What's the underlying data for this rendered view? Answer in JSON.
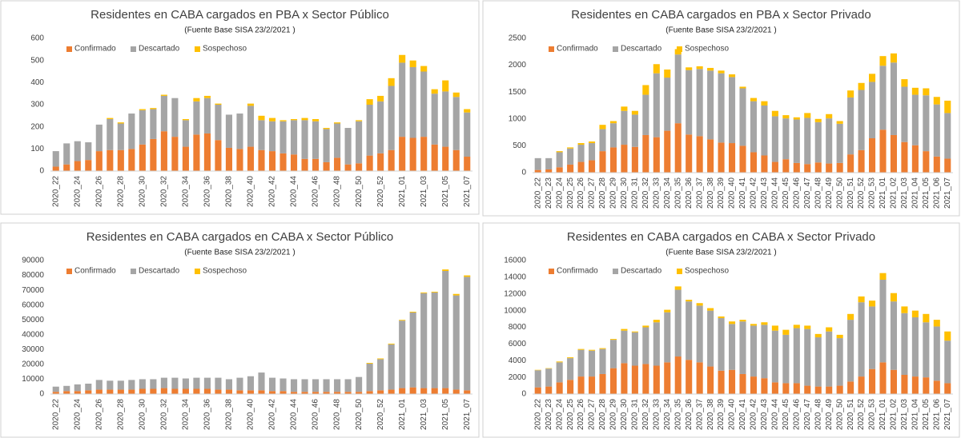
{
  "chart_data": [
    {
      "type": "stacked-bar",
      "title": "Residentes en CABA cargados en PBA x Sector Público",
      "subtitle": "(Fuente  Base SISA  23/2/2021 )",
      "categories": [
        "2020_22",
        null,
        "2020_24",
        null,
        "2020_26",
        null,
        "2020_28",
        null,
        "2020_30",
        null,
        "2020_32",
        null,
        "2020_34",
        null,
        "2020_36",
        null,
        "2020_38",
        null,
        "2020_40",
        null,
        "2020_42",
        null,
        "2020_44",
        null,
        "2020_46",
        null,
        "2020_48",
        null,
        "2020_50",
        null,
        "2020_52",
        null,
        "2021_01",
        null,
        "2021_03",
        null,
        "2021_05",
        null,
        "2021_07"
      ],
      "series": [
        {
          "name": "Confirmado",
          "color": "#ed7d31",
          "values": [
            20,
            30,
            45,
            50,
            90,
            95,
            95,
            100,
            120,
            145,
            180,
            155,
            110,
            165,
            170,
            140,
            105,
            100,
            110,
            95,
            90,
            80,
            75,
            55,
            55,
            40,
            60,
            30,
            35,
            70,
            80,
            95,
            155,
            150,
            155,
            120,
            110,
            95,
            65
          ]
        },
        {
          "name": "Descartado",
          "color": "#a5a5a5",
          "values": [
            70,
            95,
            90,
            80,
            120,
            140,
            120,
            160,
            155,
            135,
            160,
            175,
            120,
            150,
            160,
            160,
            150,
            160,
            185,
            135,
            135,
            145,
            155,
            175,
            170,
            150,
            155,
            165,
            190,
            230,
            235,
            290,
            335,
            320,
            295,
            230,
            250,
            240,
            200
          ]
        },
        {
          "name": "Sospechoso",
          "color": "#ffc000",
          "values": [
            0,
            0,
            0,
            0,
            0,
            5,
            5,
            0,
            5,
            5,
            5,
            0,
            5,
            15,
            10,
            5,
            0,
            0,
            10,
            20,
            15,
            5,
            5,
            10,
            10,
            5,
            5,
            0,
            5,
            25,
            25,
            35,
            35,
            30,
            25,
            20,
            50,
            20,
            15
          ]
        }
      ],
      "ylim": [
        0,
        600
      ],
      "yticks": [
        0,
        100,
        200,
        300,
        400,
        500,
        600
      ],
      "grid": false,
      "legend": "top-left"
    },
    {
      "type": "stacked-bar",
      "title": "Residentes en CABA cargados en PBA x Sector Privado",
      "subtitle": "(Fuente  Base SISA  23/2/2021 )",
      "categories": [
        "2020_22",
        "2020_23",
        "2020_24",
        "2020_25",
        "2020_26",
        "2020_27",
        "2020_28",
        "2020_29",
        "2020_30",
        "2020_31",
        "2020_32",
        "2020_33",
        "2020_34",
        "2020_35",
        "2020_36",
        "2020_37",
        "2020_38",
        "2020_39",
        "2020_40",
        "2020_41",
        "2020_42",
        "2020_43",
        "2020_44",
        "2020_45",
        "2020_46",
        "2020_47",
        "2020_48",
        "2020_49",
        "2020_50",
        "2020_51",
        "2020_52",
        "2020_53",
        "2021_01",
        "2021_02",
        "2021_03",
        "2021_04",
        "2021_05",
        "2021_06",
        "2021_07"
      ],
      "series": [
        {
          "name": "Confirmado",
          "color": "#ed7d31",
          "values": [
            50,
            60,
            100,
            150,
            200,
            230,
            400,
            470,
            520,
            480,
            700,
            660,
            780,
            920,
            710,
            680,
            620,
            560,
            550,
            500,
            380,
            320,
            200,
            250,
            180,
            160,
            190,
            170,
            180,
            340,
            420,
            640,
            800,
            700,
            570,
            510,
            400,
            300,
            260
          ]
        },
        {
          "name": "Descartado",
          "color": "#a5a5a5",
          "values": [
            220,
            210,
            280,
            300,
            320,
            320,
            410,
            450,
            630,
            600,
            750,
            1190,
            990,
            1280,
            1200,
            1250,
            1280,
            1290,
            1230,
            1070,
            950,
            930,
            850,
            760,
            810,
            860,
            750,
            840,
            730,
            1060,
            1120,
            1050,
            1190,
            1350,
            1030,
            940,
            1040,
            970,
            850
          ]
        },
        {
          "name": "Sospechoso",
          "color": "#ffc000",
          "values": [
            0,
            0,
            20,
            20,
            30,
            30,
            80,
            40,
            80,
            70,
            180,
            170,
            150,
            100,
            50,
            50,
            50,
            50,
            50,
            30,
            60,
            80,
            100,
            60,
            40,
            90,
            60,
            80,
            50,
            130,
            130,
            150,
            180,
            170,
            140,
            130,
            130,
            140,
            230
          ]
        }
      ],
      "ylim": [
        0,
        2500
      ],
      "yticks": [
        0,
        500,
        1000,
        1500,
        2000,
        2500
      ],
      "grid": false,
      "legend": "top-left"
    },
    {
      "type": "stacked-bar",
      "title": "Residentes en CABA cargados en CABA x Sector Público",
      "subtitle": "(Fuente  Base SISA  23/2/2021 )",
      "categories": [
        "2020_22",
        null,
        "2020_24",
        null,
        "2020_26",
        null,
        "2020_28",
        null,
        "2020_30",
        null,
        "2020_32",
        null,
        "2020_34",
        null,
        "2020_36",
        null,
        "2020_38",
        null,
        "2020_40",
        null,
        "2020_42",
        null,
        "2020_44",
        null,
        "2020_46",
        null,
        "2020_48",
        null,
        "2020_50",
        null,
        "2020_52",
        null,
        "2021_01",
        null,
        "2021_03",
        null,
        "2021_05",
        null,
        "2021_07"
      ],
      "series": [
        {
          "name": "Confirmado",
          "color": "#ed7d31",
          "values": [
            1500,
            2000,
            2000,
            2500,
            3000,
            3000,
            3000,
            3000,
            3500,
            3500,
            4000,
            3500,
            3500,
            3500,
            3500,
            3000,
            3000,
            2500,
            2500,
            2500,
            2000,
            2000,
            1500,
            1500,
            1500,
            1500,
            1500,
            1500,
            1500,
            2000,
            2500,
            3000,
            4000,
            4500,
            4000,
            4000,
            4000,
            3000,
            2500
          ]
        },
        {
          "name": "Descartado",
          "color": "#a5a5a5",
          "values": [
            3500,
            3500,
            4500,
            4500,
            6500,
            6000,
            6000,
            6500,
            6500,
            6500,
            7000,
            7500,
            7000,
            7500,
            7500,
            8000,
            7000,
            8500,
            9500,
            12000,
            9000,
            8500,
            8500,
            8500,
            8500,
            8500,
            8500,
            8500,
            10000,
            18500,
            21000,
            30500,
            45500,
            50500,
            64000,
            64500,
            79000,
            63500,
            76500
          ]
        },
        {
          "name": "Sospechoso",
          "color": "#ffc000",
          "values": [
            0,
            0,
            0,
            0,
            0,
            0,
            0,
            0,
            0,
            0,
            0,
            0,
            0,
            0,
            0,
            0,
            0,
            0,
            0,
            0,
            0,
            0,
            0,
            0,
            0,
            0,
            0,
            0,
            0,
            500,
            500,
            500,
            500,
            500,
            500,
            500,
            1000,
            1000,
            1000
          ]
        }
      ],
      "ylim": [
        0,
        90000
      ],
      "yticks": [
        0,
        10000,
        20000,
        30000,
        40000,
        50000,
        60000,
        70000,
        80000,
        90000
      ],
      "grid": false,
      "legend": "top-left"
    },
    {
      "type": "stacked-bar",
      "title": "Residentes en CABA cargados en CABA x Sector Privado",
      "subtitle": "(Fuente  Base SISA  23/2/2021 )",
      "categories": [
        "2020_22",
        "2020_23",
        "2020_24",
        "2020_25",
        "2020_26",
        "2020_27",
        "2020_28",
        "2020_29",
        "2020_30",
        "2020_31",
        "2020_32",
        "2020_33",
        "2020_34",
        "2020_35",
        "2020_36",
        "2020_37",
        "2020_38",
        "2020_39",
        "2020_40",
        "2020_41",
        "2020_42",
        "2020_43",
        "2020_44",
        "2020_45",
        "2020_46",
        "2020_47",
        "2020_48",
        "2020_49",
        "2020_50",
        "2020_51",
        "2020_52",
        "2020_53",
        "2021_01",
        "2021_02",
        "2021_03",
        "2021_04",
        "2021_05",
        "2021_06",
        "2021_07"
      ],
      "series": [
        {
          "name": "Confirmado",
          "color": "#ed7d31",
          "values": [
            800,
            900,
            1400,
            1700,
            2100,
            2100,
            2400,
            3100,
            3700,
            3400,
            3600,
            3400,
            3800,
            4500,
            4100,
            3800,
            3300,
            2800,
            2900,
            2400,
            2100,
            1900,
            1400,
            1300,
            1300,
            1000,
            900,
            900,
            1000,
            1500,
            2100,
            3000,
            3800,
            2900,
            2300,
            2100,
            2000,
            1600,
            1300
          ]
        },
        {
          "name": "Descartado",
          "color": "#a5a5a5",
          "values": [
            2050,
            2150,
            2400,
            2600,
            3200,
            3100,
            3000,
            3400,
            3900,
            4000,
            4400,
            5200,
            6000,
            8000,
            7000,
            6800,
            6700,
            6300,
            5500,
            6300,
            6100,
            6400,
            6200,
            5800,
            6600,
            6800,
            5900,
            6600,
            5700,
            7400,
            8900,
            7500,
            9900,
            8200,
            7400,
            7100,
            6600,
            6500,
            5100
          ]
        },
        {
          "name": "Sospechoso",
          "color": "#ffc000",
          "values": [
            50,
            50,
            100,
            100,
            100,
            100,
            100,
            100,
            200,
            100,
            200,
            300,
            300,
            400,
            200,
            300,
            300,
            200,
            300,
            200,
            200,
            300,
            600,
            600,
            400,
            400,
            400,
            500,
            400,
            700,
            700,
            700,
            800,
            1000,
            800,
            800,
            1000,
            800,
            1100
          ]
        }
      ],
      "ylim": [
        0,
        16000
      ],
      "yticks": [
        0,
        2000,
        4000,
        6000,
        8000,
        10000,
        12000,
        14000,
        16000
      ],
      "grid": false,
      "legend": "top-left"
    }
  ]
}
